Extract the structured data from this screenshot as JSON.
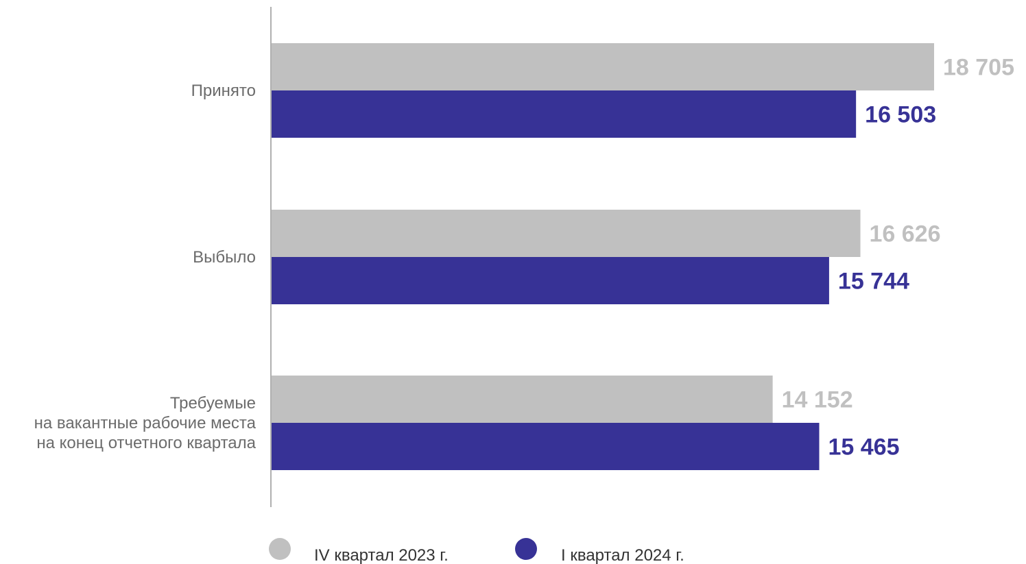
{
  "chart_data": {
    "type": "bar",
    "orientation": "horizontal",
    "title": "",
    "xlabel": "",
    "ylabel": "",
    "categories": [
      [
        "Принято"
      ],
      [
        "Выбыло"
      ],
      [
        "Требуемые",
        "на вакантные рабочие места",
        "на конец отчетного квартала"
      ]
    ],
    "series": [
      {
        "name": "IV квартал 2023 г.",
        "color": "#c0c0c0",
        "values": [
          18705,
          16626,
          14152
        ],
        "labels": [
          "18 705",
          "16 626",
          "14 152"
        ]
      },
      {
        "name": "I квартал 2024 г.",
        "color": "#373296",
        "values": [
          16503,
          15744,
          15465
        ],
        "labels": [
          "16 503",
          "15 744",
          "15 465"
        ]
      }
    ],
    "xlim": [
      0,
      18705
    ],
    "grid": false,
    "legend": "bottom"
  }
}
